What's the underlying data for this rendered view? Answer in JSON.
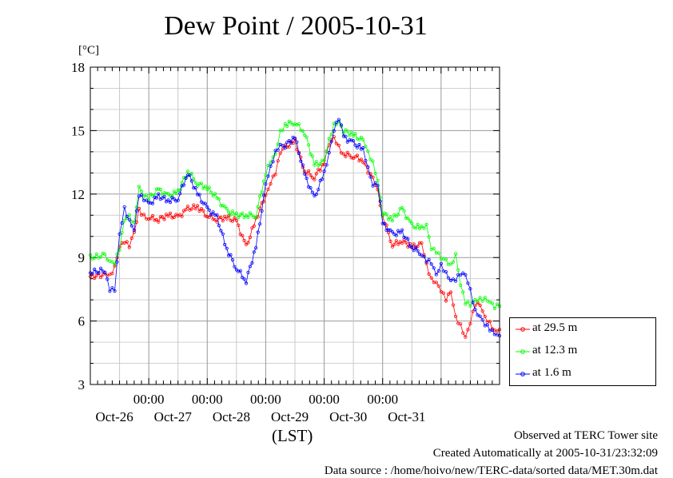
{
  "chart_data": {
    "type": "line",
    "title": "Dew Point / 2005-10-31",
    "ylabel": "[°C]",
    "xlabel": "(LST)",
    "ylim": [
      3,
      18
    ],
    "yticks": [
      3,
      6,
      9,
      12,
      15,
      18
    ],
    "xlim": [
      "2005-10-25T00:00",
      "2005-10-31T24:00"
    ],
    "xticks": [
      {
        "time": "2005-10-26T00:00",
        "label": "00:00",
        "date": "Oct-26"
      },
      {
        "time": "2005-10-27T00:00",
        "label": "00:00",
        "date": "Oct-27"
      },
      {
        "time": "2005-10-28T00:00",
        "label": "00:00",
        "date": "Oct-28"
      },
      {
        "time": "2005-10-29T00:00",
        "label": "00:00",
        "date": "Oct-29"
      },
      {
        "time": "2005-10-30T00:00",
        "label": "00:00",
        "date": "Oct-30"
      },
      {
        "time": "2005-10-31T00:00",
        "label": "",
        "date": "Oct-31"
      }
    ],
    "grid": true,
    "legend_position": "bottom-right, outside plot",
    "series": [
      {
        "name": "at 29.5 m",
        "color": "#ff0000",
        "x": [
          "2005-10-25T00:00",
          "2005-10-25T06:00",
          "2005-10-25T08:00",
          "2005-10-25T10:00",
          "2005-10-25T12:00",
          "2005-10-25T14:00",
          "2005-10-25T16:00",
          "2005-10-25T18:00",
          "2005-10-25T20:00",
          "2005-10-25T22:00",
          "2005-10-26T00:00",
          "2005-10-26T04:00",
          "2005-10-26T08:00",
          "2005-10-26T12:00",
          "2005-10-26T16:00",
          "2005-10-26T20:00",
          "2005-10-27T00:00",
          "2005-10-27T04:00",
          "2005-10-27T08:00",
          "2005-10-27T12:00",
          "2005-10-27T16:00",
          "2005-10-27T20:00",
          "2005-10-28T00:00",
          "2005-10-28T02:00",
          "2005-10-28T04:00",
          "2005-10-28T06:00",
          "2005-10-28T08:00",
          "2005-10-28T12:00",
          "2005-10-28T16:00",
          "2005-10-28T20:00",
          "2005-10-29T00:00",
          "2005-10-29T02:00",
          "2005-10-29T04:00",
          "2005-10-29T06:00",
          "2005-10-29T08:00",
          "2005-10-29T12:00",
          "2005-10-29T16:00",
          "2005-10-29T18:00",
          "2005-10-29T20:00",
          "2005-10-29T22:00",
          "2005-10-30T00:00",
          "2005-10-30T04:00",
          "2005-10-30T08:00",
          "2005-10-30T12:00",
          "2005-10-30T16:00",
          "2005-10-30T18:00",
          "2005-10-30T20:00",
          "2005-10-30T22:00",
          "2005-10-31T00:00",
          "2005-10-31T02:00",
          "2005-10-31T04:00",
          "2005-10-31T06:00",
          "2005-10-31T08:00",
          "2005-10-31T10:00",
          "2005-10-31T12:00",
          "2005-10-31T14:00",
          "2005-10-31T16:00",
          "2005-10-31T18:00",
          "2005-10-31T20:00",
          "2005-10-31T22:00",
          "2005-10-31T24:00"
        ],
        "y": [
          8.1,
          8.2,
          8.1,
          8.6,
          9.6,
          9.8,
          9.5,
          10.1,
          11.2,
          11.0,
          10.9,
          10.8,
          11.0,
          10.9,
          11.3,
          11.4,
          11.0,
          10.8,
          10.9,
          10.7,
          9.5,
          10.8,
          12.0,
          12.6,
          13.0,
          13.9,
          14.2,
          14.5,
          13.1,
          12.8,
          13.5,
          14.3,
          14.6,
          14.2,
          13.9,
          13.8,
          13.6,
          13.0,
          12.7,
          12.1,
          11.0,
          9.6,
          9.8,
          9.5,
          9.6,
          8.6,
          8.0,
          7.9,
          7.5,
          7.0,
          7.3,
          6.1,
          5.8,
          5.3,
          6.0,
          6.8,
          6.7,
          6.1,
          5.9,
          5.6,
          5.6
        ]
      },
      {
        "name": "at 12.3 m",
        "color": "#00ff00",
        "x": [
          "2005-10-25T00:00",
          "2005-10-25T06:00",
          "2005-10-25T08:00",
          "2005-10-25T10:00",
          "2005-10-25T12:00",
          "2005-10-25T14:00",
          "2005-10-25T16:00",
          "2005-10-25T18:00",
          "2005-10-25T20:00",
          "2005-10-25T22:00",
          "2005-10-26T00:00",
          "2005-10-26T04:00",
          "2005-10-26T08:00",
          "2005-10-26T12:00",
          "2005-10-26T16:00",
          "2005-10-26T20:00",
          "2005-10-27T00:00",
          "2005-10-27T04:00",
          "2005-10-27T08:00",
          "2005-10-27T12:00",
          "2005-10-27T16:00",
          "2005-10-27T20:00",
          "2005-10-28T00:00",
          "2005-10-28T02:00",
          "2005-10-28T04:00",
          "2005-10-28T06:00",
          "2005-10-28T08:00",
          "2005-10-28T12:00",
          "2005-10-28T16:00",
          "2005-10-28T20:00",
          "2005-10-29T00:00",
          "2005-10-29T02:00",
          "2005-10-29T04:00",
          "2005-10-29T06:00",
          "2005-10-29T08:00",
          "2005-10-29T12:00",
          "2005-10-29T16:00",
          "2005-10-29T18:00",
          "2005-10-29T20:00",
          "2005-10-29T22:00",
          "2005-10-30T00:00",
          "2005-10-30T04:00",
          "2005-10-30T08:00",
          "2005-10-30T12:00",
          "2005-10-30T16:00",
          "2005-10-30T18:00",
          "2005-10-30T20:00",
          "2005-10-30T22:00",
          "2005-10-31T00:00",
          "2005-10-31T02:00",
          "2005-10-31T04:00",
          "2005-10-31T06:00",
          "2005-10-31T08:00",
          "2005-10-31T10:00",
          "2005-10-31T12:00",
          "2005-10-31T14:00",
          "2005-10-31T16:00",
          "2005-10-31T18:00",
          "2005-10-31T20:00",
          "2005-10-31T22:00",
          "2005-10-31T24:00"
        ],
        "y": [
          9.0,
          9.1,
          8.9,
          8.8,
          9.4,
          10.7,
          10.9,
          10.6,
          12.4,
          12.0,
          11.8,
          12.2,
          11.9,
          12.1,
          13.1,
          12.5,
          12.3,
          11.8,
          11.2,
          11.0,
          11.0,
          11.0,
          13.0,
          13.5,
          13.8,
          14.9,
          15.3,
          15.4,
          14.9,
          13.4,
          13.5,
          14.5,
          15.3,
          15.5,
          15.0,
          14.8,
          14.5,
          13.9,
          13.5,
          12.7,
          11.1,
          10.8,
          11.3,
          10.5,
          10.4,
          10.6,
          9.5,
          9.3,
          8.9,
          8.8,
          8.6,
          9.2,
          7.8,
          6.9,
          6.7,
          6.9,
          7.0,
          7.1,
          7.0,
          6.7,
          6.7
        ]
      },
      {
        "name": "at 1.6 m",
        "color": "#0000ff",
        "x": [
          "2005-10-25T00:00",
          "2005-10-25T06:00",
          "2005-10-25T08:00",
          "2005-10-25T10:00",
          "2005-10-25T12:00",
          "2005-10-25T14:00",
          "2005-10-25T16:00",
          "2005-10-25T18:00",
          "2005-10-25T20:00",
          "2005-10-25T22:00",
          "2005-10-26T00:00",
          "2005-10-26T04:00",
          "2005-10-26T08:00",
          "2005-10-26T12:00",
          "2005-10-26T16:00",
          "2005-10-26T20:00",
          "2005-10-27T00:00",
          "2005-10-27T04:00",
          "2005-10-27T08:00",
          "2005-10-27T12:00",
          "2005-10-27T16:00",
          "2005-10-27T20:00",
          "2005-10-28T00:00",
          "2005-10-28T02:00",
          "2005-10-28T04:00",
          "2005-10-28T06:00",
          "2005-10-28T08:00",
          "2005-10-28T12:00",
          "2005-10-28T16:00",
          "2005-10-28T20:00",
          "2005-10-29T00:00",
          "2005-10-29T02:00",
          "2005-10-29T04:00",
          "2005-10-29T06:00",
          "2005-10-29T08:00",
          "2005-10-29T12:00",
          "2005-10-29T16:00",
          "2005-10-29T18:00",
          "2005-10-29T20:00",
          "2005-10-29T22:00",
          "2005-10-30T00:00",
          "2005-10-30T04:00",
          "2005-10-30T08:00",
          "2005-10-30T12:00",
          "2005-10-30T16:00",
          "2005-10-30T18:00",
          "2005-10-30T20:00",
          "2005-10-30T22:00",
          "2005-10-31T00:00",
          "2005-10-31T02:00",
          "2005-10-31T04:00",
          "2005-10-31T06:00",
          "2005-10-31T08:00",
          "2005-10-31T10:00",
          "2005-10-31T12:00",
          "2005-10-31T14:00",
          "2005-10-31T16:00",
          "2005-10-31T18:00",
          "2005-10-31T20:00",
          "2005-10-31T22:00",
          "2005-10-31T24:00"
        ],
        "y": [
          8.3,
          8.4,
          7.5,
          7.4,
          10.0,
          11.3,
          10.8,
          10.4,
          12.0,
          11.7,
          11.5,
          11.9,
          11.7,
          11.8,
          13.0,
          12.0,
          11.3,
          10.9,
          9.4,
          8.5,
          7.9,
          9.5,
          12.4,
          13.2,
          14.0,
          14.4,
          14.3,
          14.7,
          12.9,
          11.8,
          13.0,
          14.0,
          15.1,
          15.6,
          14.7,
          14.4,
          14.1,
          13.3,
          12.5,
          12.5,
          10.6,
          10.1,
          10.2,
          9.5,
          9.2,
          8.9,
          8.7,
          8.1,
          8.6,
          8.3,
          8.0,
          8.0,
          8.2,
          8.1,
          7.4,
          6.5,
          6.3,
          5.9,
          5.6,
          5.3,
          5.3
        ]
      }
    ]
  },
  "footer": {
    "site": "Observed at TERC Tower site",
    "created": "Created Automatically at 2005-10-31/23:32:09",
    "source": "Data source : /home/hoivo/new/TERC-data/sorted  data/MET.30m.dat"
  }
}
